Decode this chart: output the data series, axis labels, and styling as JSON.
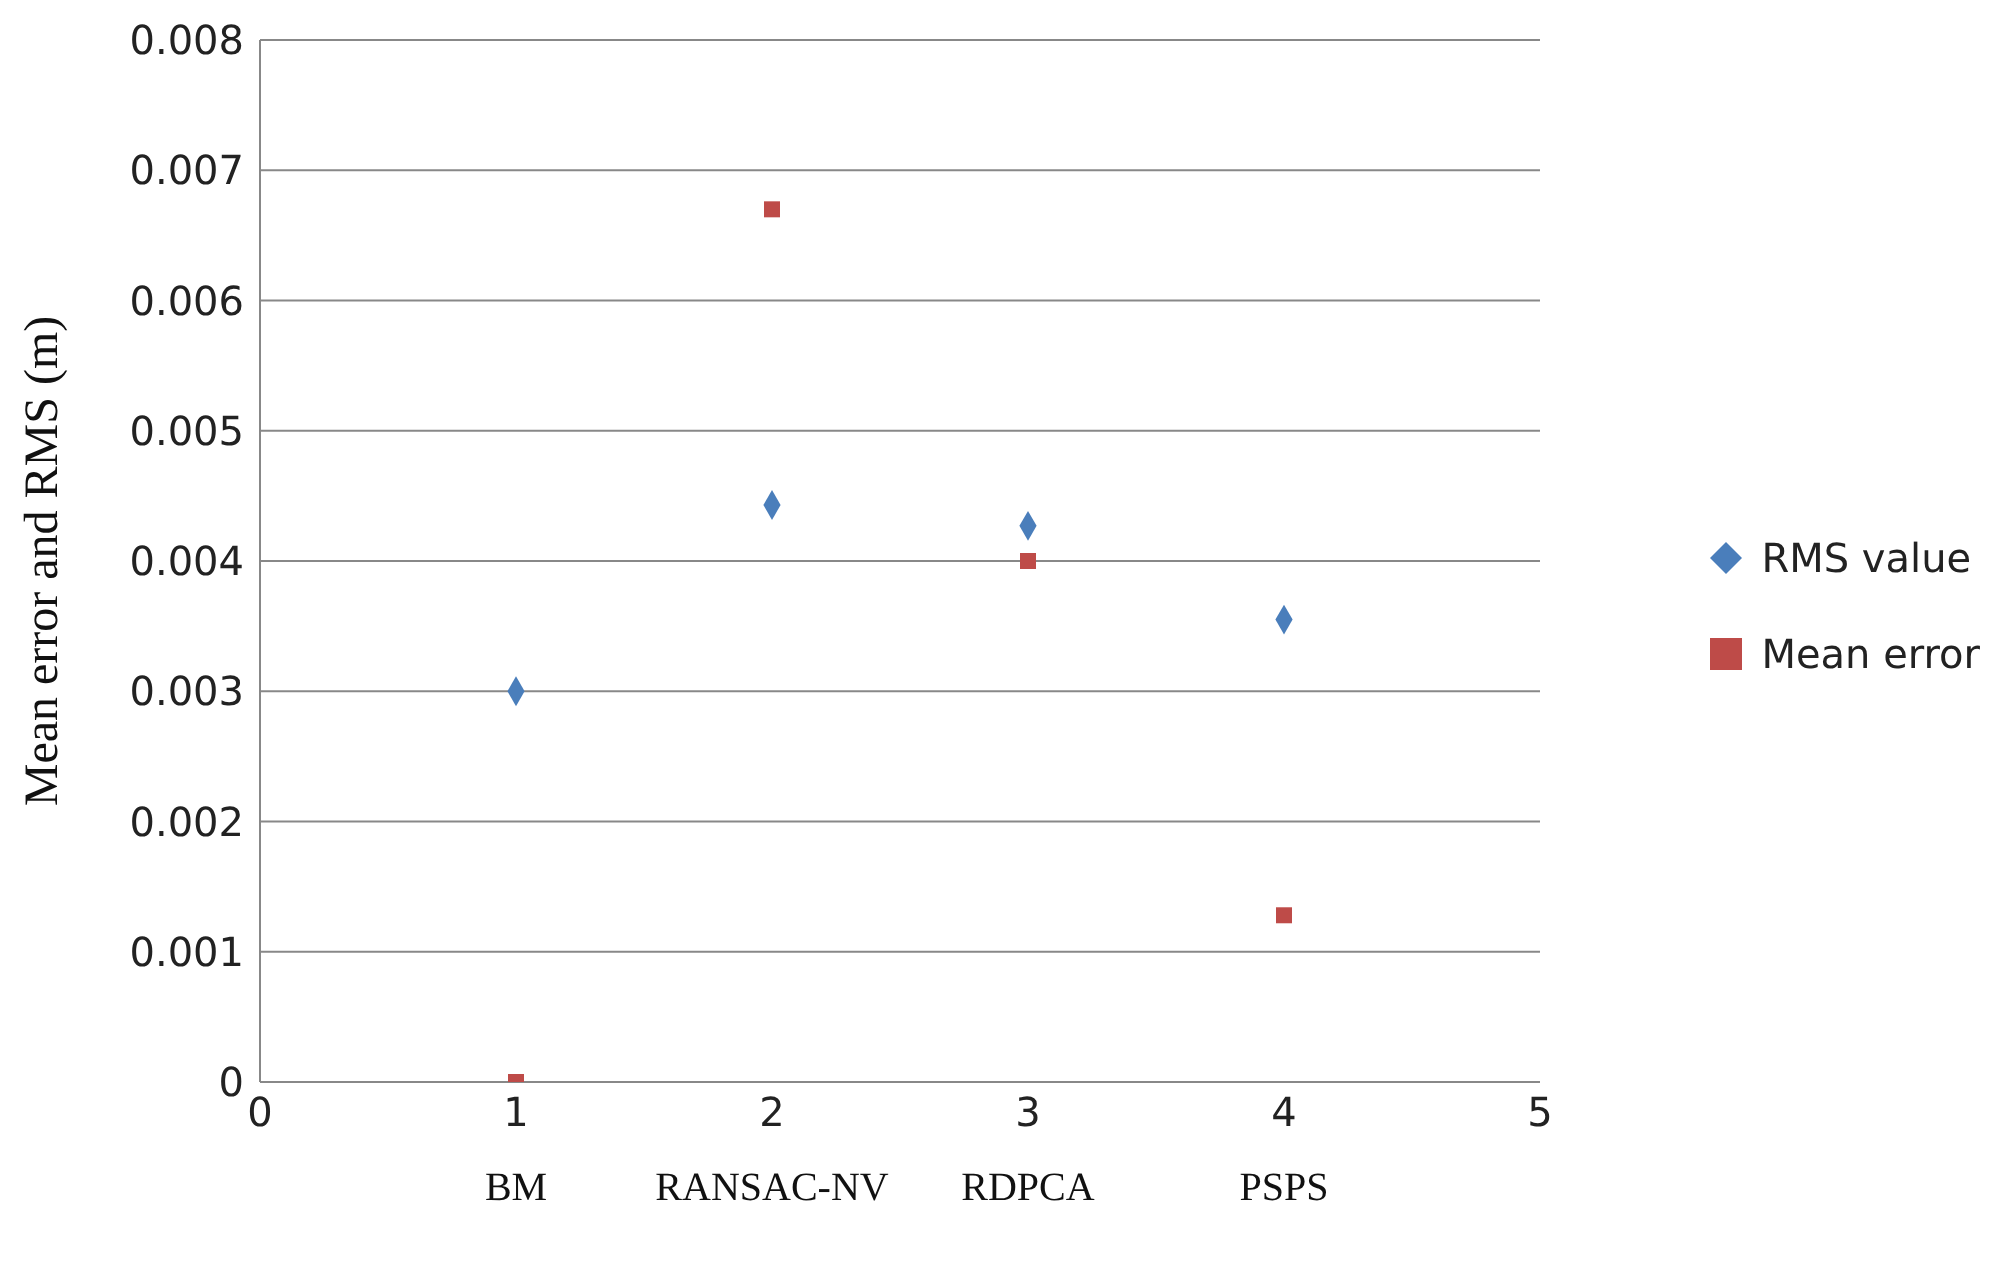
{
  "chart_data": {
    "type": "scatter",
    "ylabel": "Mean error and RMS (m)",
    "x": [
      1,
      2,
      3,
      4
    ],
    "series": [
      {
        "name": "RMS value",
        "color": "#4a7ebb",
        "marker": "diamond",
        "values": [
          0.003,
          0.00443,
          0.00427,
          0.00355
        ]
      },
      {
        "name": "Mean error",
        "color": "#be4b48",
        "marker": "square",
        "values": [
          0,
          0.0067,
          0.004,
          0.00128
        ]
      }
    ],
    "xlim": [
      0,
      5
    ],
    "xticks": [
      0,
      1,
      2,
      3,
      4,
      5
    ],
    "ylim": [
      0,
      0.008
    ],
    "yticks": [
      0,
      0.001,
      0.002,
      0.003,
      0.004,
      0.005,
      0.006,
      0.007,
      0.008
    ],
    "grid": "y",
    "legend": "right",
    "annotations": [
      "BM",
      "RANSAC-NV",
      "RDPCA",
      "PSPS"
    ]
  }
}
